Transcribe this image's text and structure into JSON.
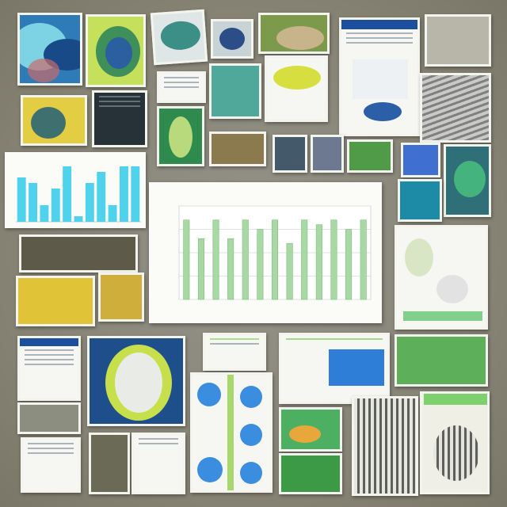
{
  "chart_data": [
    {
      "type": "bar",
      "title": "",
      "xlabel": "",
      "ylabel": "",
      "ylim": [
        0,
        20
      ],
      "values": [
        17,
        13,
        17,
        13,
        17,
        15,
        17,
        12,
        17,
        16,
        17,
        15,
        17
      ],
      "colors": {
        "bar": "#a8d8a3",
        "bar_edge": "#7fbf79",
        "grid": "#dfe3e3"
      }
    },
    {
      "type": "bar",
      "title": "",
      "values": [
        8,
        7,
        3,
        6,
        10,
        1,
        7,
        9,
        3,
        10,
        10
      ],
      "colors": {
        "bar": "#4fd3ec"
      }
    }
  ]
}
